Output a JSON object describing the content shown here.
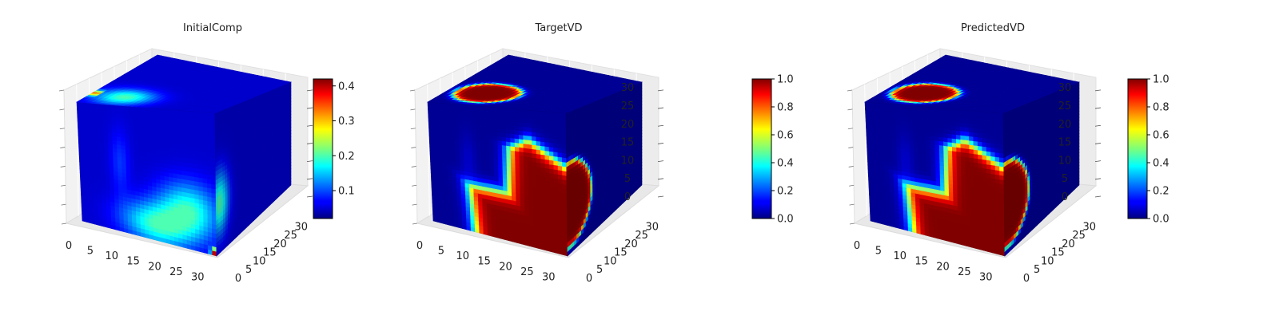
{
  "figure": {
    "colormap": "jet",
    "axes_style": "3d-voxel-cube"
  },
  "chart_data": [
    {
      "type": "heatmap",
      "title": "InitialComp",
      "x_ticks": [
        "0",
        "5",
        "10",
        "15",
        "20",
        "25",
        "30"
      ],
      "y_ticks": [
        "0",
        "5",
        "10",
        "15",
        "20",
        "25",
        "30"
      ],
      "z_ticks": [],
      "xlim": [
        0,
        32
      ],
      "ylim": [
        0,
        32
      ],
      "zlim": [
        0,
        32
      ],
      "colorbar": {
        "min": 0.02,
        "max": 0.42,
        "ticks": [
          "0.1",
          "0.2",
          "0.3",
          "0.4"
        ],
        "tick_values": [
          0.1,
          0.2,
          0.3,
          0.4
        ]
      },
      "field": {
        "background": 0.05,
        "top_blob": 0.2,
        "lower_blob": 0.2,
        "hotspots": 0.42
      }
    },
    {
      "type": "heatmap",
      "title": "TargetVD",
      "x_ticks": [
        "0",
        "5",
        "10",
        "15",
        "20",
        "25",
        "30"
      ],
      "y_ticks": [
        "0",
        "5",
        "10",
        "15",
        "20",
        "25",
        "30"
      ],
      "z_ticks": [
        "0",
        "5",
        "10",
        "15",
        "20",
        "25",
        "30"
      ],
      "xlim": [
        0,
        32
      ],
      "ylim": [
        0,
        32
      ],
      "zlim": [
        0,
        32
      ],
      "colorbar": {
        "min": 0.0,
        "max": 1.0,
        "ticks": [
          "0.0",
          "0.2",
          "0.4",
          "0.6",
          "0.8",
          "1.0"
        ],
        "tick_values": [
          0,
          0.2,
          0.4,
          0.6,
          0.8,
          1.0
        ]
      },
      "field": {
        "background": 0.02,
        "top_blob": 1.0,
        "lower_blob": 1.0
      }
    },
    {
      "type": "heatmap",
      "title": "PredictedVD",
      "x_ticks": [
        "0",
        "5",
        "10",
        "15",
        "20",
        "25",
        "30"
      ],
      "y_ticks": [
        "0",
        "5",
        "10",
        "15",
        "20",
        "25",
        "30"
      ],
      "z_ticks": [
        "0",
        "5",
        "10",
        "15",
        "20",
        "25",
        "30"
      ],
      "xlim": [
        0,
        32
      ],
      "ylim": [
        0,
        32
      ],
      "zlim": [
        0,
        32
      ],
      "colorbar": {
        "min": 0.0,
        "max": 1.0,
        "ticks": [
          "0.0",
          "0.2",
          "0.4",
          "0.6",
          "0.8",
          "1.0"
        ],
        "tick_values": [
          0,
          0.2,
          0.4,
          0.6,
          0.8,
          1.0
        ]
      },
      "field": {
        "background": 0.02,
        "top_blob": 1.0,
        "lower_blob": 1.0
      }
    }
  ]
}
